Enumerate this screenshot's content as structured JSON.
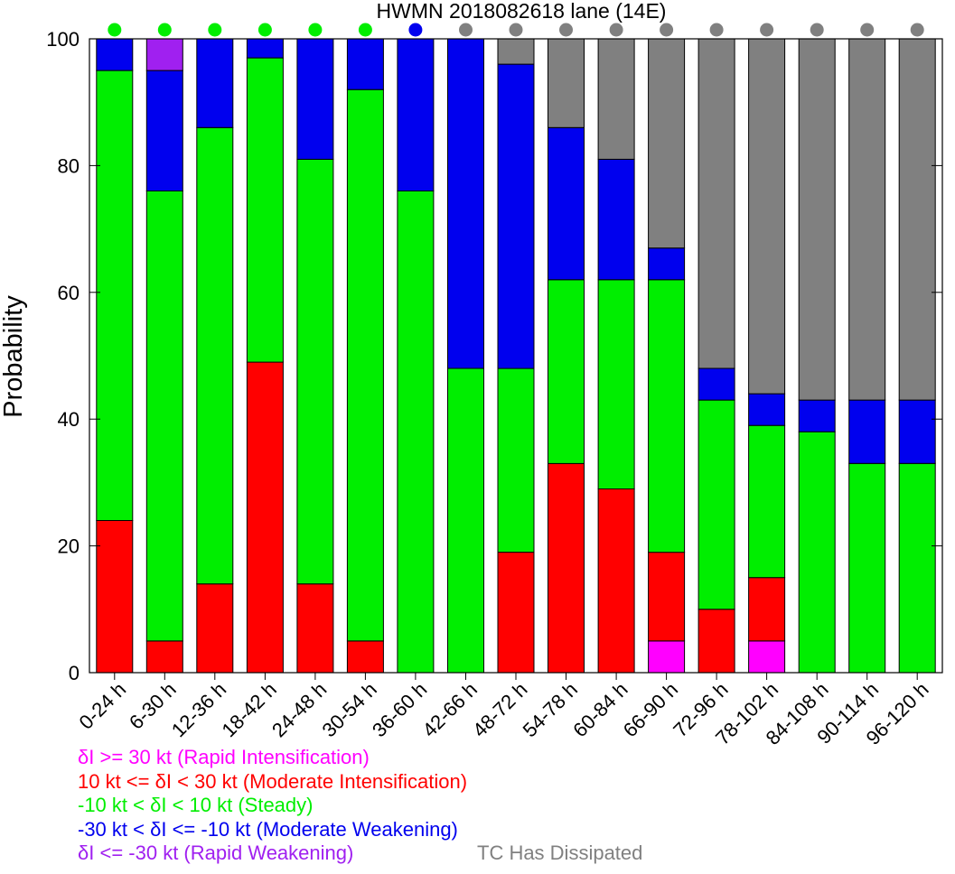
{
  "chart_data": {
    "type": "bar",
    "stacked": true,
    "title": "HWMN 2018082618 lane (14E)",
    "ylabel": "Probability",
    "ylim": [
      0,
      100
    ],
    "yticks": [
      0,
      20,
      40,
      60,
      80,
      100
    ],
    "categories": [
      "0-24 h",
      "6-30 h",
      "12-36 h",
      "18-42 h",
      "24-48 h",
      "30-54 h",
      "36-60 h",
      "42-66 h",
      "48-72 h",
      "54-78 h",
      "60-84 h",
      "66-90 h",
      "72-96 h",
      "78-102 h",
      "84-108 h",
      "90-114 h",
      "96-120 h"
    ],
    "series": [
      {
        "name": "δI >= 30 kt (Rapid Intensification)",
        "color": "#ff00ff",
        "values": [
          0,
          0,
          0,
          0,
          0,
          0,
          0,
          0,
          0,
          0,
          0,
          5,
          0,
          5,
          0,
          0,
          0
        ]
      },
      {
        "name": "10 kt <= δI < 30 kt (Moderate Intensification)",
        "color": "#ff0000",
        "values": [
          24,
          5,
          14,
          49,
          14,
          5,
          0,
          0,
          19,
          33,
          29,
          14,
          10,
          10,
          0,
          0,
          0
        ]
      },
      {
        "name": "-10 kt < δI < 10 kt (Steady)",
        "color": "#00ee00",
        "values": [
          71,
          71,
          72,
          48,
          67,
          87,
          76,
          48,
          29,
          29,
          33,
          43,
          33,
          24,
          38,
          33,
          33
        ]
      },
      {
        "name": "-30 kt < δI <= -10 kt (Moderate Weakening)",
        "color": "#0000ee",
        "values": [
          5,
          19,
          14,
          3,
          19,
          8,
          24,
          52,
          48,
          24,
          19,
          5,
          5,
          5,
          5,
          10,
          10
        ]
      },
      {
        "name": "δI <= -30 kt (Rapid Weakening)",
        "color": "#a020f0",
        "values": [
          0,
          5,
          0,
          0,
          0,
          0,
          0,
          0,
          0,
          0,
          0,
          0,
          0,
          0,
          0,
          0,
          0
        ]
      },
      {
        "name": "TC Has Dissipated",
        "color": "#808080",
        "values": [
          0,
          0,
          0,
          0,
          0,
          0,
          0,
          0,
          4,
          14,
          19,
          33,
          52,
          56,
          57,
          57,
          57
        ]
      }
    ],
    "top_dot_colors": [
      "#00ee00",
      "#00ee00",
      "#00ee00",
      "#00ee00",
      "#00ee00",
      "#00ee00",
      "#0000ee",
      "#808080",
      "#808080",
      "#808080",
      "#808080",
      "#808080",
      "#808080",
      "#808080",
      "#808080",
      "#808080",
      "#808080"
    ]
  },
  "legend": {
    "ri": "δI >= 30 kt (Rapid Intensification)",
    "mi": "10 kt <= δI < 30 kt (Moderate Intensification)",
    "steady": "-10 kt < δI < 10 kt (Steady)",
    "mw": "-30 kt < δI <= -10 kt (Moderate Weakening)",
    "rw": "δI <= -30 kt (Rapid Weakening)",
    "dissipated": "TC Has Dissipated"
  }
}
